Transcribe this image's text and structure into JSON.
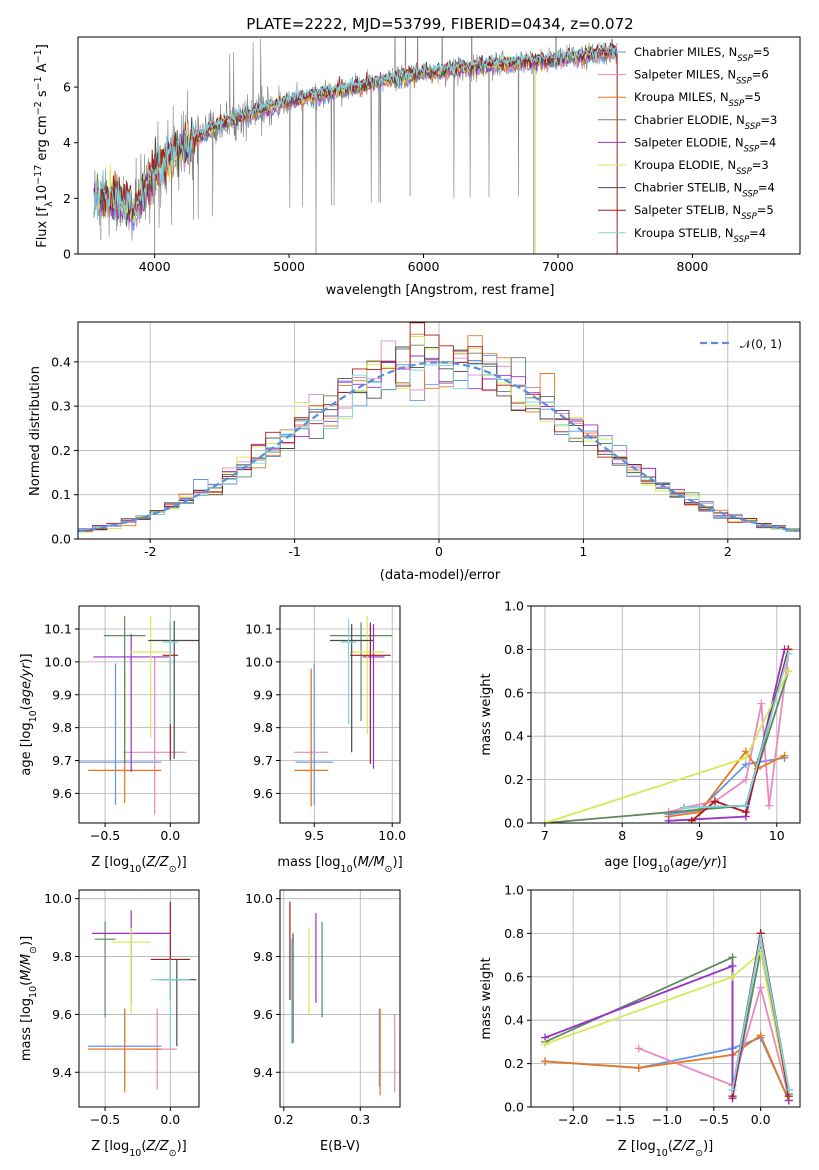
{
  "title": "PLATE=2222, MJD=53799, FIBERID=0434, z=0.072",
  "colors": {
    "Chabrier MILES": "#6495ED",
    "Salpeter MILES": "#E889C0",
    "Kroupa MILES": "#E87722",
    "Chabrier ELODIE": "#5E8A5E",
    "Salpeter ELODIE": "#9B30C8",
    "Kroupa ELODIE": "#D7E85A",
    "Chabrier STELIB": "#4A4A4A",
    "Salpeter STELIB": "#B01818",
    "Kroupa STELIB": "#7FD6DE",
    "data": "#808080",
    "normal": "#5B8FD9"
  },
  "chart_data": [
    {
      "id": "spectrum",
      "type": "line",
      "title": "PLATE=2222, MJD=53799, FIBERID=0434, z=0.072",
      "xlabel": "wavelength [Angstrom, rest frame]",
      "ylabel_main": "Flux [f",
      "ylabel_sub": "λ",
      "ylabel_rest": "10",
      "ylabel_sup1": "−17",
      "ylabel_mid": " erg cm",
      "ylabel_sup2": "−2",
      "ylabel_mid2": " s",
      "ylabel_sup3": "−1",
      "ylabel_end": " A",
      "ylabel_sup4": "−1",
      "ylabel_close": "]",
      "xlim": [
        3430,
        8800
      ],
      "ylim": [
        0,
        7.8
      ],
      "xticks": [
        4000,
        5000,
        6000,
        7000,
        8000
      ],
      "yticks": [
        0,
        2,
        4,
        6
      ],
      "grid": false,
      "legend_position": "top-right",
      "spectrum_range": [
        3550,
        7440
      ],
      "series": [
        {
          "name": "Chabrier MILES",
          "nssp": "5"
        },
        {
          "name": "Salpeter MILES",
          "nssp": "6"
        },
        {
          "name": "Kroupa MILES",
          "nssp": "5"
        },
        {
          "name": "Chabrier ELODIE",
          "nssp": "3"
        },
        {
          "name": "Salpeter ELODIE",
          "nssp": "4"
        },
        {
          "name": "Kroupa ELODIE",
          "nssp": "3"
        },
        {
          "name": "Chabrier STELIB",
          "nssp": "4"
        },
        {
          "name": "Salpeter STELIB",
          "nssp": "5"
        },
        {
          "name": "Kroupa STELIB",
          "nssp": "4"
        }
      ],
      "continuum_knots": [
        [
          3550,
          2.1
        ],
        [
          3700,
          2.0
        ],
        [
          3850,
          1.6
        ],
        [
          4000,
          3.0
        ],
        [
          4200,
          3.8
        ],
        [
          4500,
          4.7
        ],
        [
          5000,
          5.5
        ],
        [
          5500,
          6.0
        ],
        [
          6000,
          6.5
        ],
        [
          6500,
          6.8
        ],
        [
          7000,
          7.0
        ],
        [
          7440,
          7.3
        ]
      ],
      "data_dips": [
        [
          3600,
          0.5
        ],
        [
          4000,
          0
        ],
        [
          5200,
          0
        ],
        [
          5900,
          2.1
        ],
        [
          6820,
          0
        ]
      ]
    },
    {
      "id": "residuals",
      "type": "histogram",
      "xlabel": "(data-model)/error",
      "ylabel": "Normed distribution",
      "xlim": [
        -2.5,
        2.5
      ],
      "ylim": [
        0,
        0.49
      ],
      "xticks": [
        -2,
        -1,
        0,
        1,
        2
      ],
      "yticks": [
        0.0,
        0.1,
        0.2,
        0.3,
        0.4
      ],
      "grid": true,
      "legend_position": "top-right",
      "normal_label": "𝒩(0, 1)",
      "bin_width": 0.1
    },
    {
      "id": "age-vs-Z",
      "type": "errorbar",
      "xlabel": "Z [log10(Z/Z⊙)]",
      "ylabel": "age  [log10(age/yr)]",
      "xlim": [
        -0.7,
        0.22
      ],
      "ylim": [
        9.51,
        10.17
      ],
      "xticks": [
        -0.5,
        0.0
      ],
      "xticklabels": [
        "−0.5",
        "0.0"
      ],
      "yticks": [
        9.6,
        9.7,
        9.8,
        9.9,
        10.0,
        10.1
      ],
      "grid": true,
      "points": [
        {
          "s": "Chabrier MILES",
          "x": -0.42,
          "xerr": 0.35,
          "y": 9.695,
          "yerr": [
            0.13,
            0.3
          ]
        },
        {
          "s": "Salpeter MILES",
          "x": -0.12,
          "xerr": 0.24,
          "y": 9.725,
          "yerr": [
            0.19,
            0.29
          ]
        },
        {
          "s": "Kroupa MILES",
          "x": -0.35,
          "xerr": 0.28,
          "y": 9.67,
          "yerr": [
            0.1,
            0.31
          ]
        },
        {
          "s": "Chabrier ELODIE",
          "x": -0.35,
          "xerr": 0.16,
          "y": 10.08,
          "yerr": [
            0.39,
            0.06
          ]
        },
        {
          "s": "Salpeter ELODIE",
          "x": -0.3,
          "xerr": 0.29,
          "y": 10.015,
          "yerr": [
            0.35,
            0.07
          ]
        },
        {
          "s": "Kroupa ELODIE",
          "x": -0.15,
          "xerr": 0.16,
          "y": 10.03,
          "yerr": [
            0.26,
            0.11
          ]
        },
        {
          "s": "Chabrier STELIB",
          "x": 0.03,
          "xerr": 0.2,
          "y": 10.065,
          "yerr": [
            0.36,
            0.06
          ]
        },
        {
          "s": "Salpeter STELIB",
          "x": 0.0,
          "xerr": 0.06,
          "y": 10.02,
          "yerr": [
            0.32,
            0.1
          ]
        },
        {
          "s": "Kroupa STELIB",
          "x": 0.0,
          "xerr": 0.06,
          "y": 10.06,
          "yerr": [
            0.25,
            0.07
          ]
        }
      ]
    },
    {
      "id": "age-vs-mass",
      "type": "errorbar",
      "xlabel": "mass [log10(M/M⊙)]",
      "ylabel": "",
      "xlim": [
        9.28,
        10.05
      ],
      "ylim": [
        9.51,
        10.17
      ],
      "xticks": [
        9.5,
        10.0
      ],
      "xticklabels": [
        "9.5",
        "10.0"
      ],
      "yticks": [
        9.6,
        9.7,
        9.8,
        9.9,
        10.0,
        10.1
      ],
      "grid": true,
      "points": [
        {
          "s": "Chabrier MILES",
          "x": 9.5,
          "xerr": 0.12,
          "y": 9.695,
          "yerr": [
            0.13,
            0.3
          ]
        },
        {
          "s": "Salpeter MILES",
          "x": 9.48,
          "xerr": 0.11,
          "y": 9.725,
          "yerr": [
            0.16,
            0.25
          ]
        },
        {
          "s": "Kroupa MILES",
          "x": 9.48,
          "xerr": 0.11,
          "y": 9.67,
          "yerr": [
            0.11,
            0.31
          ]
        },
        {
          "s": "Chabrier ELODIE",
          "x": 9.8,
          "xerr": 0.2,
          "y": 10.08,
          "yerr": [
            0.26,
            0.04
          ]
        },
        {
          "s": "Salpeter ELODIE",
          "x": 9.88,
          "xerr": 0.07,
          "y": 10.015,
          "yerr": [
            0.34,
            0.1
          ]
        },
        {
          "s": "Kroupa ELODIE",
          "x": 9.84,
          "xerr": 0.11,
          "y": 10.03,
          "yerr": [
            0.25,
            0.11
          ]
        },
        {
          "s": "Chabrier STELIB",
          "x": 9.74,
          "xerr": 0.14,
          "y": 10.065,
          "yerr": [
            0.34,
            0.05
          ]
        },
        {
          "s": "Salpeter STELIB",
          "x": 9.86,
          "xerr": 0.13,
          "y": 10.02,
          "yerr": [
            0.33,
            0.1
          ]
        },
        {
          "s": "Kroupa STELIB",
          "x": 9.72,
          "xerr": 0.05,
          "y": 10.06,
          "yerr": [
            0.25,
            0.07
          ]
        }
      ]
    },
    {
      "id": "weight-vs-age",
      "type": "line",
      "xlabel": "age  [log10(age/yr)]",
      "ylabel": "mass weight",
      "xlim": [
        6.82,
        10.3
      ],
      "ylim": [
        0,
        1.0
      ],
      "xticks": [
        7,
        8,
        9,
        10
      ],
      "yticks": [
        0.0,
        0.2,
        0.4,
        0.6,
        0.8,
        1.0
      ],
      "grid": true,
      "series": [
        {
          "name": "Chabrier MILES",
          "x": [
            8.6,
            9.0,
            9.6,
            9.75,
            10.1
          ],
          "y": [
            0.04,
            0.06,
            0.27,
            0.28,
            0.3
          ]
        },
        {
          "name": "Salpeter MILES",
          "x": [
            8.6,
            8.8,
            9.2,
            9.6,
            9.8,
            9.9,
            10.15
          ],
          "y": [
            0.05,
            0.07,
            0.1,
            0.2,
            0.55,
            0.08,
            0.78
          ]
        },
        {
          "name": "Kroupa MILES",
          "x": [
            8.6,
            9.0,
            9.6,
            9.75,
            10.1
          ],
          "y": [
            0.03,
            0.05,
            0.33,
            0.25,
            0.31
          ]
        },
        {
          "name": "Chabrier ELODIE",
          "x": [
            7.0,
            9.6,
            10.15
          ],
          "y": [
            0.0,
            0.08,
            0.7
          ]
        },
        {
          "name": "Salpeter ELODIE",
          "x": [
            8.6,
            9.6,
            10.1
          ],
          "y": [
            0.01,
            0.03,
            0.8
          ]
        },
        {
          "name": "Kroupa ELODIE",
          "x": [
            7.0,
            9.6,
            10.15
          ],
          "y": [
            0.0,
            0.3,
            0.7
          ]
        },
        {
          "name": "Chabrier STELIB",
          "x": [
            8.8,
            9.6,
            10.15
          ],
          "y": [
            0.07,
            0.08,
            0.8
          ]
        },
        {
          "name": "Salpeter STELIB",
          "x": [
            8.9,
            9.2,
            9.6,
            10.15
          ],
          "y": [
            0.01,
            0.1,
            0.05,
            0.8
          ]
        },
        {
          "name": "Kroupa STELIB",
          "x": [
            8.8,
            9.6,
            10.15
          ],
          "y": [
            0.07,
            0.08,
            0.78
          ]
        }
      ]
    },
    {
      "id": "mass-vs-Z",
      "type": "errorbar",
      "xlabel": "Z [log10(Z/Z⊙)]",
      "ylabel": "mass [log10(M/M⊙)]",
      "xlim": [
        -0.7,
        0.22
      ],
      "ylim": [
        9.28,
        10.03
      ],
      "xticks": [
        -0.5,
        0.0
      ],
      "xticklabels": [
        "−0.5",
        "0.0"
      ],
      "yticks": [
        9.4,
        9.6,
        9.8,
        10.0
      ],
      "grid": true,
      "points": [
        {
          "s": "Chabrier MILES",
          "x": -0.35,
          "xerr": 0.28,
          "y": 9.49,
          "yerr": [
            0.14,
            0.13
          ]
        },
        {
          "s": "Salpeter MILES",
          "x": -0.1,
          "xerr": 0.15,
          "y": 9.48,
          "yerr": [
            0.14,
            0.14
          ]
        },
        {
          "s": "Kroupa MILES",
          "x": -0.35,
          "xerr": 0.28,
          "y": 9.48,
          "yerr": [
            0.15,
            0.14
          ]
        },
        {
          "s": "Chabrier ELODIE",
          "x": -0.5,
          "xerr": 0.08,
          "y": 9.86,
          "yerr": [
            0.27,
            0.06
          ]
        },
        {
          "s": "Salpeter ELODIE",
          "x": -0.3,
          "xerr": 0.3,
          "y": 9.88,
          "yerr": [
            0.24,
            0.08
          ]
        },
        {
          "s": "Kroupa ELODIE",
          "x": -0.3,
          "xerr": 0.15,
          "y": 9.85,
          "yerr": [
            0.25,
            0.05
          ]
        },
        {
          "s": "Chabrier STELIB",
          "x": 0.05,
          "xerr": 0.15,
          "y": 9.72,
          "yerr": [
            0.23,
            0.07
          ]
        },
        {
          "s": "Salpeter STELIB",
          "x": 0.0,
          "xerr": 0.15,
          "y": 9.79,
          "yerr": [
            0.14,
            0.2
          ]
        },
        {
          "s": "Kroupa STELIB",
          "x": 0.0,
          "xerr": 0.15,
          "y": 9.72,
          "yerr": [
            0.24,
            0.07
          ]
        }
      ]
    },
    {
      "id": "mass-vs-EBV",
      "type": "errorbar",
      "xlabel": "E(B-V)",
      "ylabel": "",
      "xlim": [
        0.195,
        0.352
      ],
      "ylim": [
        9.28,
        10.03
      ],
      "xticks": [
        0.2,
        0.3
      ],
      "xticklabels": [
        "0.2",
        "0.3"
      ],
      "yticks": [
        9.4,
        9.6,
        9.8,
        10.0
      ],
      "grid": true,
      "points": [
        {
          "s": "Chabrier MILES",
          "x": 0.325,
          "xerr": 0.0,
          "y": 9.48,
          "yerr": [
            0.13,
            0.14
          ]
        },
        {
          "s": "Salpeter MILES",
          "x": 0.345,
          "xerr": 0.0,
          "y": 9.47,
          "yerr": [
            0.14,
            0.13
          ]
        },
        {
          "s": "Kroupa MILES",
          "x": 0.326,
          "xerr": 0.0,
          "y": 9.47,
          "yerr": [
            0.15,
            0.15
          ]
        },
        {
          "s": "Chabrier ELODIE",
          "x": 0.25,
          "xerr": 0.0,
          "y": 9.76,
          "yerr": [
            0.17,
            0.16
          ]
        },
        {
          "s": "Salpeter ELODIE",
          "x": 0.242,
          "xerr": 0.0,
          "y": 9.8,
          "yerr": [
            0.16,
            0.15
          ]
        },
        {
          "s": "Kroupa ELODIE",
          "x": 0.233,
          "xerr": 0.0,
          "y": 9.75,
          "yerr": [
            0.15,
            0.15
          ]
        },
        {
          "s": "Chabrier STELIB",
          "x": 0.212,
          "xerr": 0.0,
          "y": 9.69,
          "yerr": [
            0.19,
            0.19
          ]
        },
        {
          "s": "Salpeter STELIB",
          "x": 0.208,
          "xerr": 0.0,
          "y": 9.8,
          "yerr": [
            0.15,
            0.19
          ]
        },
        {
          "s": "Kroupa STELIB",
          "x": 0.21,
          "xerr": 0.0,
          "y": 9.68,
          "yerr": [
            0.18,
            0.18
          ]
        }
      ]
    },
    {
      "id": "weight-vs-Z",
      "type": "line",
      "xlabel": "Z [log10(Z/Z⊙)]",
      "ylabel": "mass weight",
      "xlim": [
        -2.45,
        0.42
      ],
      "ylim": [
        0,
        1.0
      ],
      "xticks": [
        -2.0,
        -1.5,
        -1.0,
        -0.5,
        0.0
      ],
      "xticklabels": [
        "−2.0",
        "−1.5",
        "−1.0",
        "−0.5",
        "0.0"
      ],
      "yticks": [
        0.0,
        0.2,
        0.4,
        0.6,
        0.8,
        1.0
      ],
      "grid": true,
      "series": [
        {
          "name": "Chabrier MILES",
          "x": [
            -2.3,
            -1.3,
            -0.3,
            0.0,
            0.3
          ],
          "y": [
            0.21,
            0.18,
            0.27,
            0.32,
            0.03
          ]
        },
        {
          "name": "Salpeter MILES",
          "x": [
            -1.3,
            -0.3,
            0.0,
            0.3
          ],
          "y": [
            0.27,
            0.1,
            0.55,
            0.05
          ]
        },
        {
          "name": "Kroupa MILES",
          "x": [
            -2.3,
            -1.3,
            -0.3,
            0.0,
            0.3
          ],
          "y": [
            0.21,
            0.18,
            0.24,
            0.33,
            0.03
          ]
        },
        {
          "name": "Chabrier ELODIE",
          "x": [
            -2.3,
            -0.3,
            -0.3,
            0.0,
            0.3
          ],
          "y": [
            0.3,
            0.69,
            0.05,
            0.72,
            0.06
          ]
        },
        {
          "name": "Salpeter ELODIE",
          "x": [
            -2.3,
            -0.3,
            -0.3,
            0.0,
            0.3
          ],
          "y": [
            0.32,
            0.65,
            0.04,
            0.8,
            0.03
          ]
        },
        {
          "name": "Kroupa ELODIE",
          "x": [
            -2.3,
            -0.3,
            0.0,
            0.3
          ],
          "y": [
            0.29,
            0.6,
            0.71,
            0.05
          ]
        },
        {
          "name": "Chabrier STELIB",
          "x": [
            -0.3,
            0.0,
            0.3
          ],
          "y": [
            0.08,
            0.8,
            0.08
          ]
        },
        {
          "name": "Salpeter STELIB",
          "x": [
            -0.3,
            0.0,
            0.3
          ],
          "y": [
            0.05,
            0.8,
            0.05
          ]
        },
        {
          "name": "Kroupa STELIB",
          "x": [
            -0.3,
            0.0,
            0.3
          ],
          "y": [
            0.08,
            0.78,
            0.08
          ]
        }
      ]
    }
  ]
}
